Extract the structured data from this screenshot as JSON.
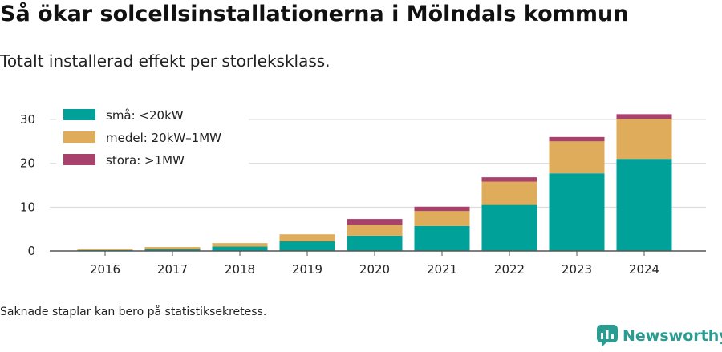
{
  "header": {
    "title": "Så ökar solcellsinstallationerna i Mölndals kommun",
    "subtitle": "Totalt installerad effekt per storleksklass."
  },
  "footer": {
    "note": "Saknade staplar kan bero på statistiksekretess.",
    "brand": "Newsworthy",
    "brand_icon": "newsworthy-logo-icon",
    "brand_color": "#2a9d93"
  },
  "chart_data": {
    "type": "bar",
    "stacked": true,
    "categories": [
      "2016",
      "2017",
      "2018",
      "2019",
      "2020",
      "2021",
      "2022",
      "2023",
      "2024"
    ],
    "series": [
      {
        "name": "små: <20kW",
        "color": "#00a198",
        "values": [
          0.2,
          0.4,
          1.0,
          2.2,
          3.5,
          5.7,
          10.5,
          17.7,
          21.0
        ]
      },
      {
        "name": "medel: 20kW–1MW",
        "color": "#deac5a",
        "values": [
          0.3,
          0.5,
          0.8,
          1.6,
          2.5,
          3.4,
          5.3,
          7.3,
          9.1
        ]
      },
      {
        "name": "stora: >1MW",
        "color": "#a8426d",
        "values": [
          0.0,
          0.0,
          0.0,
          0.0,
          1.3,
          1.0,
          1.0,
          1.0,
          1.1
        ]
      }
    ],
    "ylim": [
      0,
      32
    ],
    "yticks": [
      0,
      10,
      20,
      30
    ],
    "grid": true,
    "legend_position": "top-left"
  }
}
